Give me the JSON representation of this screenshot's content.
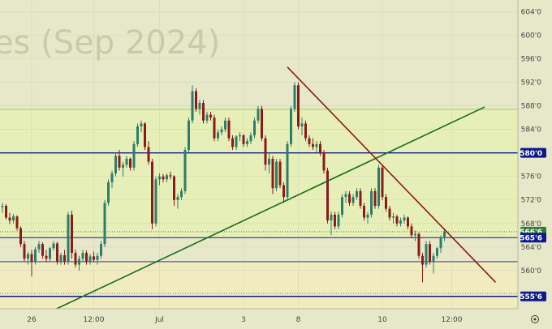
{
  "watermark": "es (Sep 2024)",
  "chart_data": {
    "type": "candlestick",
    "ylim": [
      553.5,
      606
    ],
    "y_ticks": [
      {
        "value": 604,
        "label": "604'0"
      },
      {
        "value": 600,
        "label": "600'0"
      },
      {
        "value": 596,
        "label": "596'0"
      },
      {
        "value": 592,
        "label": "592'0"
      },
      {
        "value": 588,
        "label": "588'0"
      },
      {
        "value": 584,
        "label": "584'0"
      },
      {
        "value": 576,
        "label": "576'0"
      },
      {
        "value": 572,
        "label": "572'0"
      },
      {
        "value": 568,
        "label": "568'0"
      },
      {
        "value": 564,
        "label": "564'0"
      },
      {
        "value": 560,
        "label": "560'0"
      }
    ],
    "x_ticks": [
      {
        "index": 10,
        "label": "26"
      },
      {
        "index": 27,
        "label": "12:00"
      },
      {
        "index": 45,
        "label": "Jul"
      },
      {
        "index": 68,
        "label": "3"
      },
      {
        "index": 83,
        "label": "8"
      },
      {
        "index": 106,
        "label": "10"
      },
      {
        "index": 125,
        "label": "12:00"
      }
    ],
    "price_badges": [
      {
        "value": 580,
        "label": "580'0",
        "color": "#0d1a8c"
      },
      {
        "value": 566.6,
        "label": "566'6",
        "color": "#2e7d32"
      },
      {
        "value": 565.6,
        "label": "565'6",
        "color": "#0d1a8c"
      },
      {
        "value": 555.6,
        "label": "555'6",
        "color": "#0d1a8c"
      }
    ],
    "horizontal_lines": [
      {
        "value": 580,
        "color": "#0d1a8c",
        "style": "solid",
        "width": 1.4
      },
      {
        "value": 565.6,
        "color": "#0d1a8c",
        "style": "solid",
        "width": 1.0
      },
      {
        "value": 561.5,
        "color": "#0d1a8c",
        "style": "solid",
        "width": 0.8
      },
      {
        "value": 555.6,
        "color": "#0d1a8c",
        "style": "solid",
        "width": 1.4
      },
      {
        "value": 587.4,
        "color": "#9ccc65",
        "style": "solid",
        "width": 1.0
      },
      {
        "value": 566.6,
        "color": "#555555",
        "style": "dotted",
        "width": 0.8
      },
      {
        "value": 556.1,
        "color": "#555555",
        "style": "dotted",
        "width": 0.8
      }
    ],
    "zones": [
      {
        "from": 565.6,
        "to": 587.4,
        "color": "#e6efb7"
      },
      {
        "from": 553.5,
        "to": 561.5,
        "color": "#f0ecbf"
      }
    ],
    "trendlines": [
      {
        "x1": 10,
        "y1": 551.5,
        "x2": 134,
        "y2": 587.8,
        "color": "#1b6b1b"
      },
      {
        "x1": 80,
        "y1": 594.6,
        "x2": 137,
        "y2": 558.0,
        "color": "#8b1a1a"
      }
    ],
    "colors": {
      "up": "#2e7d6a",
      "down": "#8b1a1a"
    },
    "candles": [
      [
        572.2,
        572.6,
        571.2,
        572.0
      ],
      [
        572.0,
        572.4,
        570.5,
        570.8
      ],
      [
        570.8,
        571.5,
        569.8,
        571.0
      ],
      [
        571.0,
        571.3,
        568.7,
        569.0
      ],
      [
        569.0,
        569.8,
        567.9,
        568.5
      ],
      [
        568.5,
        569.6,
        568.0,
        569.2
      ],
      [
        569.2,
        569.4,
        566.8,
        567.2
      ],
      [
        567.2,
        567.5,
        564.0,
        564.5
      ],
      [
        564.5,
        565.0,
        561.5,
        562.0
      ],
      [
        562.0,
        563.2,
        561.0,
        562.8
      ],
      [
        562.8,
        563.5,
        559.0,
        561.5
      ],
      [
        561.5,
        564.0,
        561.0,
        563.6
      ],
      [
        563.6,
        565.0,
        563.0,
        564.5
      ],
      [
        564.5,
        564.8,
        562.0,
        562.5
      ],
      [
        562.5,
        563.5,
        561.4,
        562.0
      ],
      [
        562.0,
        564.0,
        561.6,
        563.8
      ],
      [
        563.8,
        565.0,
        563.4,
        564.6
      ],
      [
        564.6,
        564.9,
        561.0,
        561.5
      ],
      [
        561.5,
        563.0,
        561.0,
        562.6
      ],
      [
        562.6,
        563.5,
        561.0,
        561.6
      ],
      [
        561.6,
        570.0,
        561.0,
        569.5
      ],
      [
        569.5,
        570.2,
        562.0,
        563.0
      ],
      [
        563.0,
        563.6,
        560.5,
        561.0
      ],
      [
        561.0,
        562.5,
        560.0,
        562.0
      ],
      [
        562.0,
        563.5,
        561.5,
        563.0
      ],
      [
        563.0,
        563.4,
        561.0,
        561.5
      ],
      [
        561.5,
        562.8,
        561.0,
        562.4
      ],
      [
        562.4,
        563.2,
        561.4,
        561.8
      ],
      [
        561.8,
        563.0,
        561.0,
        562.5
      ],
      [
        562.5,
        565.0,
        562.0,
        564.5
      ],
      [
        564.5,
        572.0,
        564.0,
        571.5
      ],
      [
        571.5,
        575.5,
        571.0,
        575.0
      ],
      [
        575.0,
        577.0,
        574.0,
        576.5
      ],
      [
        576.5,
        580.0,
        576.0,
        579.5
      ],
      [
        579.5,
        580.5,
        577.0,
        577.5
      ],
      [
        577.5,
        578.5,
        576.0,
        578.0
      ],
      [
        578.0,
        579.5,
        577.5,
        579.0
      ],
      [
        579.0,
        579.2,
        577.0,
        577.5
      ],
      [
        577.5,
        582.0,
        577.0,
        581.5
      ],
      [
        581.5,
        585.0,
        581.0,
        584.5
      ],
      [
        584.5,
        585.5,
        583.5,
        585.0
      ],
      [
        585.0,
        585.2,
        580.5,
        581.0
      ],
      [
        581.0,
        582.0,
        578.0,
        578.5
      ],
      [
        578.5,
        579.0,
        567.0,
        568.0
      ],
      [
        568.0,
        576.0,
        567.5,
        575.5
      ],
      [
        575.5,
        576.5,
        574.5,
        576.0
      ],
      [
        576.0,
        576.4,
        575.0,
        575.5
      ],
      [
        575.5,
        576.5,
        575.0,
        576.2
      ],
      [
        576.2,
        576.8,
        575.5,
        576.0
      ],
      [
        576.0,
        576.2,
        571.0,
        572.0
      ],
      [
        572.0,
        573.0,
        570.5,
        572.5
      ],
      [
        572.5,
        574.0,
        572.0,
        573.5
      ],
      [
        573.5,
        581.0,
        573.0,
        580.5
      ],
      [
        580.5,
        586.0,
        580.0,
        585.5
      ],
      [
        585.5,
        591.5,
        585.0,
        590.5
      ],
      [
        590.5,
        591.0,
        587.0,
        587.5
      ],
      [
        587.5,
        589.0,
        586.5,
        588.5
      ],
      [
        588.5,
        589.0,
        585.0,
        585.5
      ],
      [
        585.5,
        587.0,
        585.0,
        586.5
      ],
      [
        586.5,
        587.0,
        585.5,
        586.0
      ],
      [
        586.0,
        586.5,
        582.0,
        582.5
      ],
      [
        582.5,
        584.0,
        582.0,
        583.5
      ],
      [
        583.5,
        584.5,
        583.0,
        584.0
      ],
      [
        584.0,
        586.0,
        583.5,
        585.5
      ],
      [
        585.5,
        586.0,
        582.0,
        582.5
      ],
      [
        582.5,
        583.0,
        580.5,
        581.0
      ],
      [
        581.0,
        583.0,
        580.5,
        582.8
      ],
      [
        582.8,
        583.5,
        582.0,
        583.0
      ],
      [
        583.0,
        583.2,
        581.0,
        581.5
      ],
      [
        581.5,
        582.5,
        581.0,
        582.0
      ],
      [
        582.0,
        583.5,
        581.5,
        583.0
      ],
      [
        583.0,
        586.0,
        582.5,
        585.5
      ],
      [
        585.5,
        588.0,
        585.0,
        587.5
      ],
      [
        587.5,
        588.0,
        582.0,
        582.5
      ],
      [
        582.5,
        583.0,
        577.0,
        578.0
      ],
      [
        578.0,
        580.0,
        576.5,
        579.0
      ],
      [
        579.0,
        579.5,
        573.0,
        574.0
      ],
      [
        574.0,
        579.0,
        573.5,
        578.5
      ],
      [
        578.5,
        579.0,
        574.0,
        574.5
      ],
      [
        574.5,
        575.0,
        571.5,
        572.5
      ],
      [
        572.5,
        582.0,
        572.0,
        581.5
      ],
      [
        581.5,
        588.0,
        581.0,
        587.5
      ],
      [
        587.5,
        592.0,
        587.0,
        591.5
      ],
      [
        591.5,
        592.0,
        584.0,
        584.5
      ],
      [
        584.5,
        586.0,
        583.0,
        585.0
      ],
      [
        585.0,
        585.5,
        582.0,
        582.5
      ],
      [
        582.5,
        583.0,
        581.0,
        581.5
      ],
      [
        581.5,
        582.5,
        580.5,
        581.0
      ],
      [
        581.0,
        582.0,
        580.0,
        581.5
      ],
      [
        581.5,
        582.0,
        579.5,
        580.0
      ],
      [
        580.0,
        580.5,
        576.5,
        577.0
      ],
      [
        577.0,
        577.5,
        568.0,
        568.5
      ],
      [
        568.5,
        570.0,
        566.0,
        569.5
      ],
      [
        569.5,
        570.0,
        567.0,
        567.5
      ],
      [
        567.5,
        570.0,
        567.0,
        569.5
      ],
      [
        569.5,
        573.0,
        569.0,
        572.5
      ],
      [
        572.5,
        573.5,
        571.5,
        573.0
      ],
      [
        573.0,
        573.5,
        571.0,
        571.5
      ],
      [
        571.5,
        573.0,
        571.0,
        572.5
      ],
      [
        572.5,
        574.0,
        572.0,
        573.5
      ],
      [
        573.5,
        574.0,
        570.5,
        571.0
      ],
      [
        571.0,
        571.5,
        568.5,
        569.0
      ],
      [
        569.0,
        570.0,
        568.0,
        569.5
      ],
      [
        569.5,
        574.0,
        569.0,
        573.5
      ],
      [
        573.5,
        574.0,
        570.5,
        571.0
      ],
      [
        571.0,
        578.0,
        570.5,
        577.5
      ],
      [
        577.5,
        578.0,
        572.0,
        572.5
      ],
      [
        572.5,
        573.0,
        570.0,
        570.5
      ],
      [
        570.5,
        571.0,
        568.5,
        569.0
      ],
      [
        569.0,
        569.8,
        568.0,
        569.2
      ],
      [
        569.2,
        569.5,
        567.5,
        568.0
      ],
      [
        568.0,
        569.0,
        567.5,
        568.5
      ],
      [
        568.5,
        569.5,
        568.0,
        569.0
      ],
      [
        569.0,
        569.2,
        567.0,
        567.5
      ],
      [
        567.5,
        568.0,
        565.5,
        566.0
      ],
      [
        566.0,
        566.8,
        565.0,
        566.2
      ],
      [
        566.2,
        566.5,
        562.0,
        562.5
      ],
      [
        562.5,
        563.0,
        558.0,
        561.0
      ],
      [
        561.0,
        565.0,
        560.5,
        564.5
      ],
      [
        564.5,
        565.0,
        561.0,
        561.5
      ],
      [
        561.5,
        563.0,
        559.5,
        562.5
      ],
      [
        562.5,
        564.0,
        562.0,
        563.8
      ],
      [
        563.8,
        566.0,
        563.0,
        565.5
      ],
      [
        565.5,
        567.2,
        565.0,
        566.6
      ]
    ]
  }
}
